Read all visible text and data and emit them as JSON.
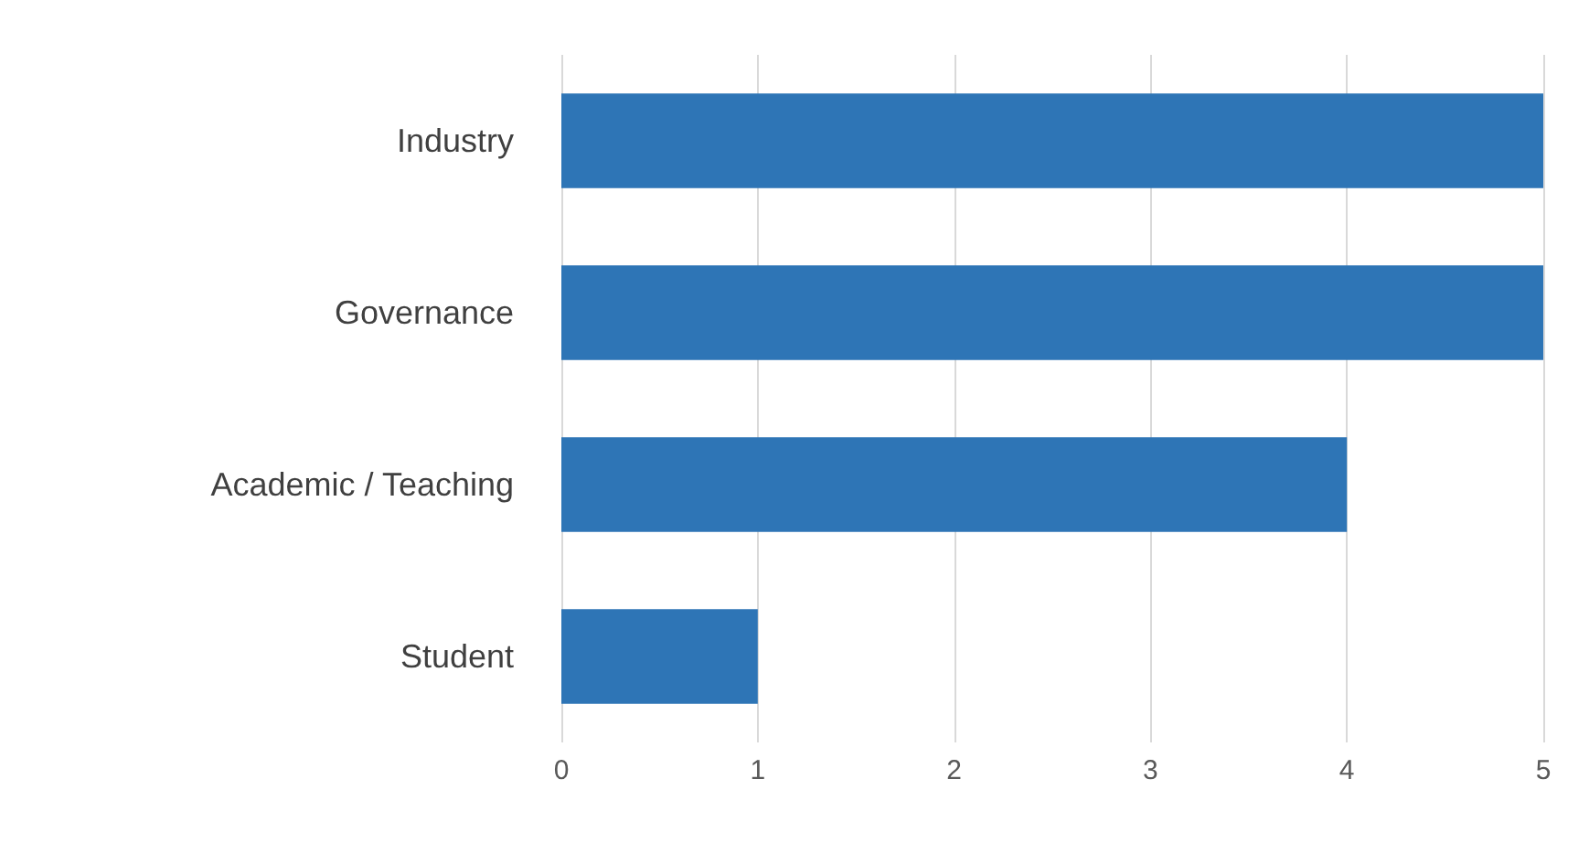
{
  "chart_data": {
    "type": "bar",
    "orientation": "horizontal",
    "categories": [
      "Industry",
      "Governance",
      "Academic / Teaching",
      "Student"
    ],
    "values": [
      5,
      5,
      4,
      1
    ],
    "color": "#2e75b6",
    "xlim": [
      0,
      5
    ],
    "xticks": [
      0,
      1,
      2,
      3,
      4,
      5
    ],
    "grid": "x"
  }
}
